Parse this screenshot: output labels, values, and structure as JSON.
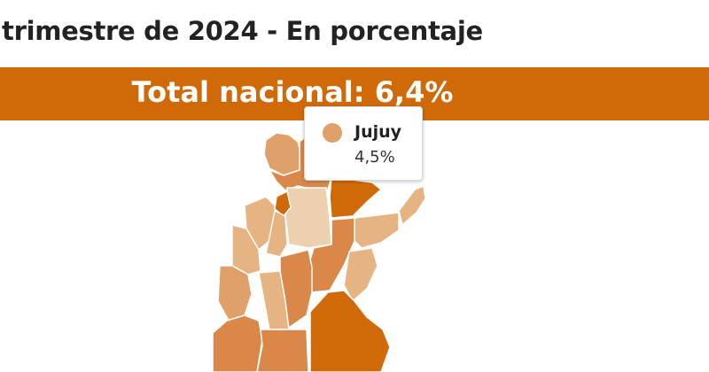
{
  "header": {
    "title": "trimestre de 2024 - En porcentaje"
  },
  "banner": {
    "text": "Total nacional: 6,4%"
  },
  "tooltip": {
    "name": "Jujuy",
    "value": "4,5%"
  },
  "colors": {
    "banner": "#d06a08",
    "very_light": "#ecd0b0",
    "light": "#e6b482",
    "medium_light": "#dfa06a",
    "medium": "#d9884a",
    "dark": "#d06a08",
    "borders": "#ffffff"
  }
}
